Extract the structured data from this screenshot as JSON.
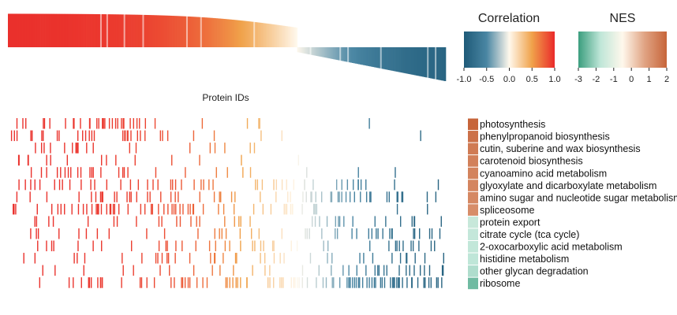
{
  "chart_data": {
    "type": "heatmap",
    "title": "",
    "xlabel": "Protein IDs",
    "ylabel": "",
    "correlation_legend": {
      "title": "Correlation",
      "ticks": [
        "-1.0",
        "-0.5",
        "0.0",
        "0.5",
        "1.0"
      ],
      "range": [
        -1.0,
        1.0
      ],
      "colors": [
        "#1e5a78",
        "#4a86a3",
        "#fff8ec",
        "#f0a24a",
        "#ea2a2a"
      ]
    },
    "nes_legend": {
      "title": "NES",
      "ticks": [
        "-3",
        "-2",
        "-1",
        "0",
        "1",
        "2"
      ],
      "range": [
        -3,
        2
      ],
      "colors": [
        "#3b9e7e",
        "#bfe6d8",
        "#fff8ec",
        "#e0a383",
        "#c7653a"
      ]
    },
    "pathways": [
      {
        "name": "photosynthesis",
        "nes": 2.0
      },
      {
        "name": "phenylpropanoid biosynthesis",
        "nes": 1.75
      },
      {
        "name": "cutin, suberine and wax biosynthesis",
        "nes": 1.55
      },
      {
        "name": "carotenoid biosynthesis",
        "nes": 1.45
      },
      {
        "name": "cyanoamino acid metabolism",
        "nes": 1.4
      },
      {
        "name": "glyoxylate and dicarboxylate metabolism",
        "nes": 1.35
      },
      {
        "name": "amino sugar and nucleotide sugar metabolism",
        "nes": 1.3
      },
      {
        "name": "spliceosome",
        "nes": 1.2
      },
      {
        "name": "protein export",
        "nes": -1.6
      },
      {
        "name": "citrate cycle (tca cycle)",
        "nes": -1.65
      },
      {
        "name": "2-oxocarboxylic acid metabolism",
        "nes": -1.7
      },
      {
        "name": "histidine metabolism",
        "nes": -1.75
      },
      {
        "name": "other glycan degradation",
        "nes": -1.9
      },
      {
        "name": "ribosome",
        "nes": -2.5
      }
    ],
    "hit_profile": {
      "rank_domain": [
        0,
        1
      ],
      "hit_density": [
        [
          0.55,
          0.5,
          0.1,
          0.04,
          0.02,
          0.01
        ],
        [
          0.5,
          0.3,
          0.1,
          0.04,
          0.02,
          0.02
        ],
        [
          0.3,
          0.2,
          0.1,
          0.05,
          0.02,
          0.0
        ],
        [
          0.25,
          0.15,
          0.08,
          0.03,
          0.01,
          0.0
        ],
        [
          0.35,
          0.25,
          0.2,
          0.1,
          0.05,
          0.05
        ],
        [
          0.3,
          0.3,
          0.25,
          0.2,
          0.25,
          0.2
        ],
        [
          0.3,
          0.35,
          0.3,
          0.25,
          0.35,
          0.4
        ],
        [
          0.35,
          0.55,
          0.65,
          0.3,
          0.15,
          0.15
        ],
        [
          0.1,
          0.15,
          0.25,
          0.2,
          0.3,
          0.25
        ],
        [
          0.15,
          0.2,
          0.2,
          0.2,
          0.25,
          0.25
        ],
        [
          0.08,
          0.15,
          0.25,
          0.2,
          0.2,
          0.25
        ],
        [
          0.08,
          0.1,
          0.2,
          0.2,
          0.2,
          0.25
        ],
        [
          0.05,
          0.1,
          0.15,
          0.2,
          0.25,
          0.35
        ],
        [
          0.15,
          0.25,
          0.5,
          0.45,
          0.7,
          0.65
        ]
      ]
    },
    "correlation_profile": {
      "description_of_shape": "sorted correlation from 1.0 at left to -1.0 at right",
      "start": 1.0,
      "end": -1.0
    }
  }
}
